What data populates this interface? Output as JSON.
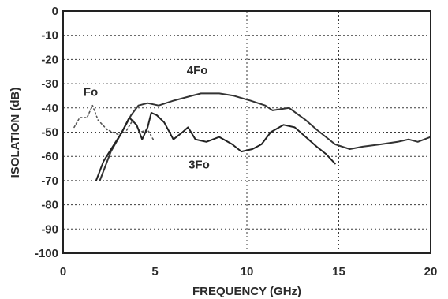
{
  "chart_data": {
    "type": "line",
    "title": "",
    "xlabel": "FREQUENCY (GHz)",
    "ylabel": "ISOLATION (dB)",
    "xlim": [
      0,
      20
    ],
    "ylim": [
      -100,
      0
    ],
    "x_ticks": [
      "0",
      "5",
      "10",
      "15",
      "20"
    ],
    "y_ticks": [
      "0",
      "-10",
      "-20",
      "-30",
      "-40",
      "-50",
      "-60",
      "-70",
      "-80",
      "-90",
      "-100"
    ],
    "grid": true,
    "legend": "none",
    "series": [
      {
        "name": "Fo",
        "color": "#555555",
        "style": "dotted",
        "points": [
          [
            0.6,
            -48
          ],
          [
            0.9,
            -44
          ],
          [
            1.3,
            -44
          ],
          [
            1.6,
            -39
          ],
          [
            1.9,
            -45
          ],
          [
            2.4,
            -49
          ],
          [
            3.0,
            -51
          ],
          [
            3.4,
            -50
          ],
          [
            3.8,
            -45
          ],
          [
            4.2,
            -50
          ],
          [
            4.6,
            -49
          ],
          [
            4.9,
            -53
          ]
        ]
      },
      {
        "name": "4Fo",
        "color": "#333333",
        "style": "solid",
        "points": [
          [
            2.0,
            -70
          ],
          [
            2.6,
            -58
          ],
          [
            3.2,
            -50
          ],
          [
            3.7,
            -43
          ],
          [
            4.1,
            -39
          ],
          [
            4.6,
            -38
          ],
          [
            5.2,
            -39
          ],
          [
            6.0,
            -37
          ],
          [
            7.0,
            -35
          ],
          [
            7.5,
            -34
          ],
          [
            8.5,
            -34
          ],
          [
            9.3,
            -35
          ],
          [
            10.2,
            -37
          ],
          [
            11.0,
            -39
          ],
          [
            11.4,
            -41
          ],
          [
            12.3,
            -40
          ],
          [
            13.2,
            -45
          ],
          [
            13.8,
            -49
          ],
          [
            14.3,
            -52
          ],
          [
            14.8,
            -55
          ],
          [
            15.6,
            -57
          ],
          [
            16.3,
            -56
          ],
          [
            17.3,
            -55
          ],
          [
            18.2,
            -54
          ],
          [
            18.8,
            -53
          ],
          [
            19.3,
            -54
          ],
          [
            20.0,
            -52
          ]
        ]
      },
      {
        "name": "3Fo",
        "color": "#222222",
        "style": "solid",
        "points": [
          [
            1.8,
            -70
          ],
          [
            2.2,
            -62
          ],
          [
            2.7,
            -56
          ],
          [
            3.2,
            -50
          ],
          [
            3.6,
            -44
          ],
          [
            4.0,
            -47
          ],
          [
            4.3,
            -53
          ],
          [
            4.6,
            -48
          ],
          [
            4.8,
            -42
          ],
          [
            5.1,
            -43
          ],
          [
            5.5,
            -46
          ],
          [
            6.0,
            -53
          ],
          [
            6.5,
            -50
          ],
          [
            6.8,
            -48
          ],
          [
            7.2,
            -53
          ],
          [
            7.8,
            -54
          ],
          [
            8.5,
            -52
          ],
          [
            9.2,
            -55
          ],
          [
            9.7,
            -58
          ],
          [
            10.3,
            -57
          ],
          [
            10.8,
            -55
          ],
          [
            11.3,
            -50
          ],
          [
            12.0,
            -47
          ],
          [
            12.6,
            -48
          ],
          [
            13.2,
            -52
          ],
          [
            13.8,
            -56
          ],
          [
            14.3,
            -59
          ],
          [
            14.8,
            -63
          ]
        ]
      }
    ],
    "annotations": [
      {
        "text": "Fo",
        "x": 1.5,
        "y": -35
      },
      {
        "text": "4Fo",
        "x": 7.3,
        "y": -26
      },
      {
        "text": "3Fo",
        "x": 7.4,
        "y": -65
      }
    ]
  }
}
